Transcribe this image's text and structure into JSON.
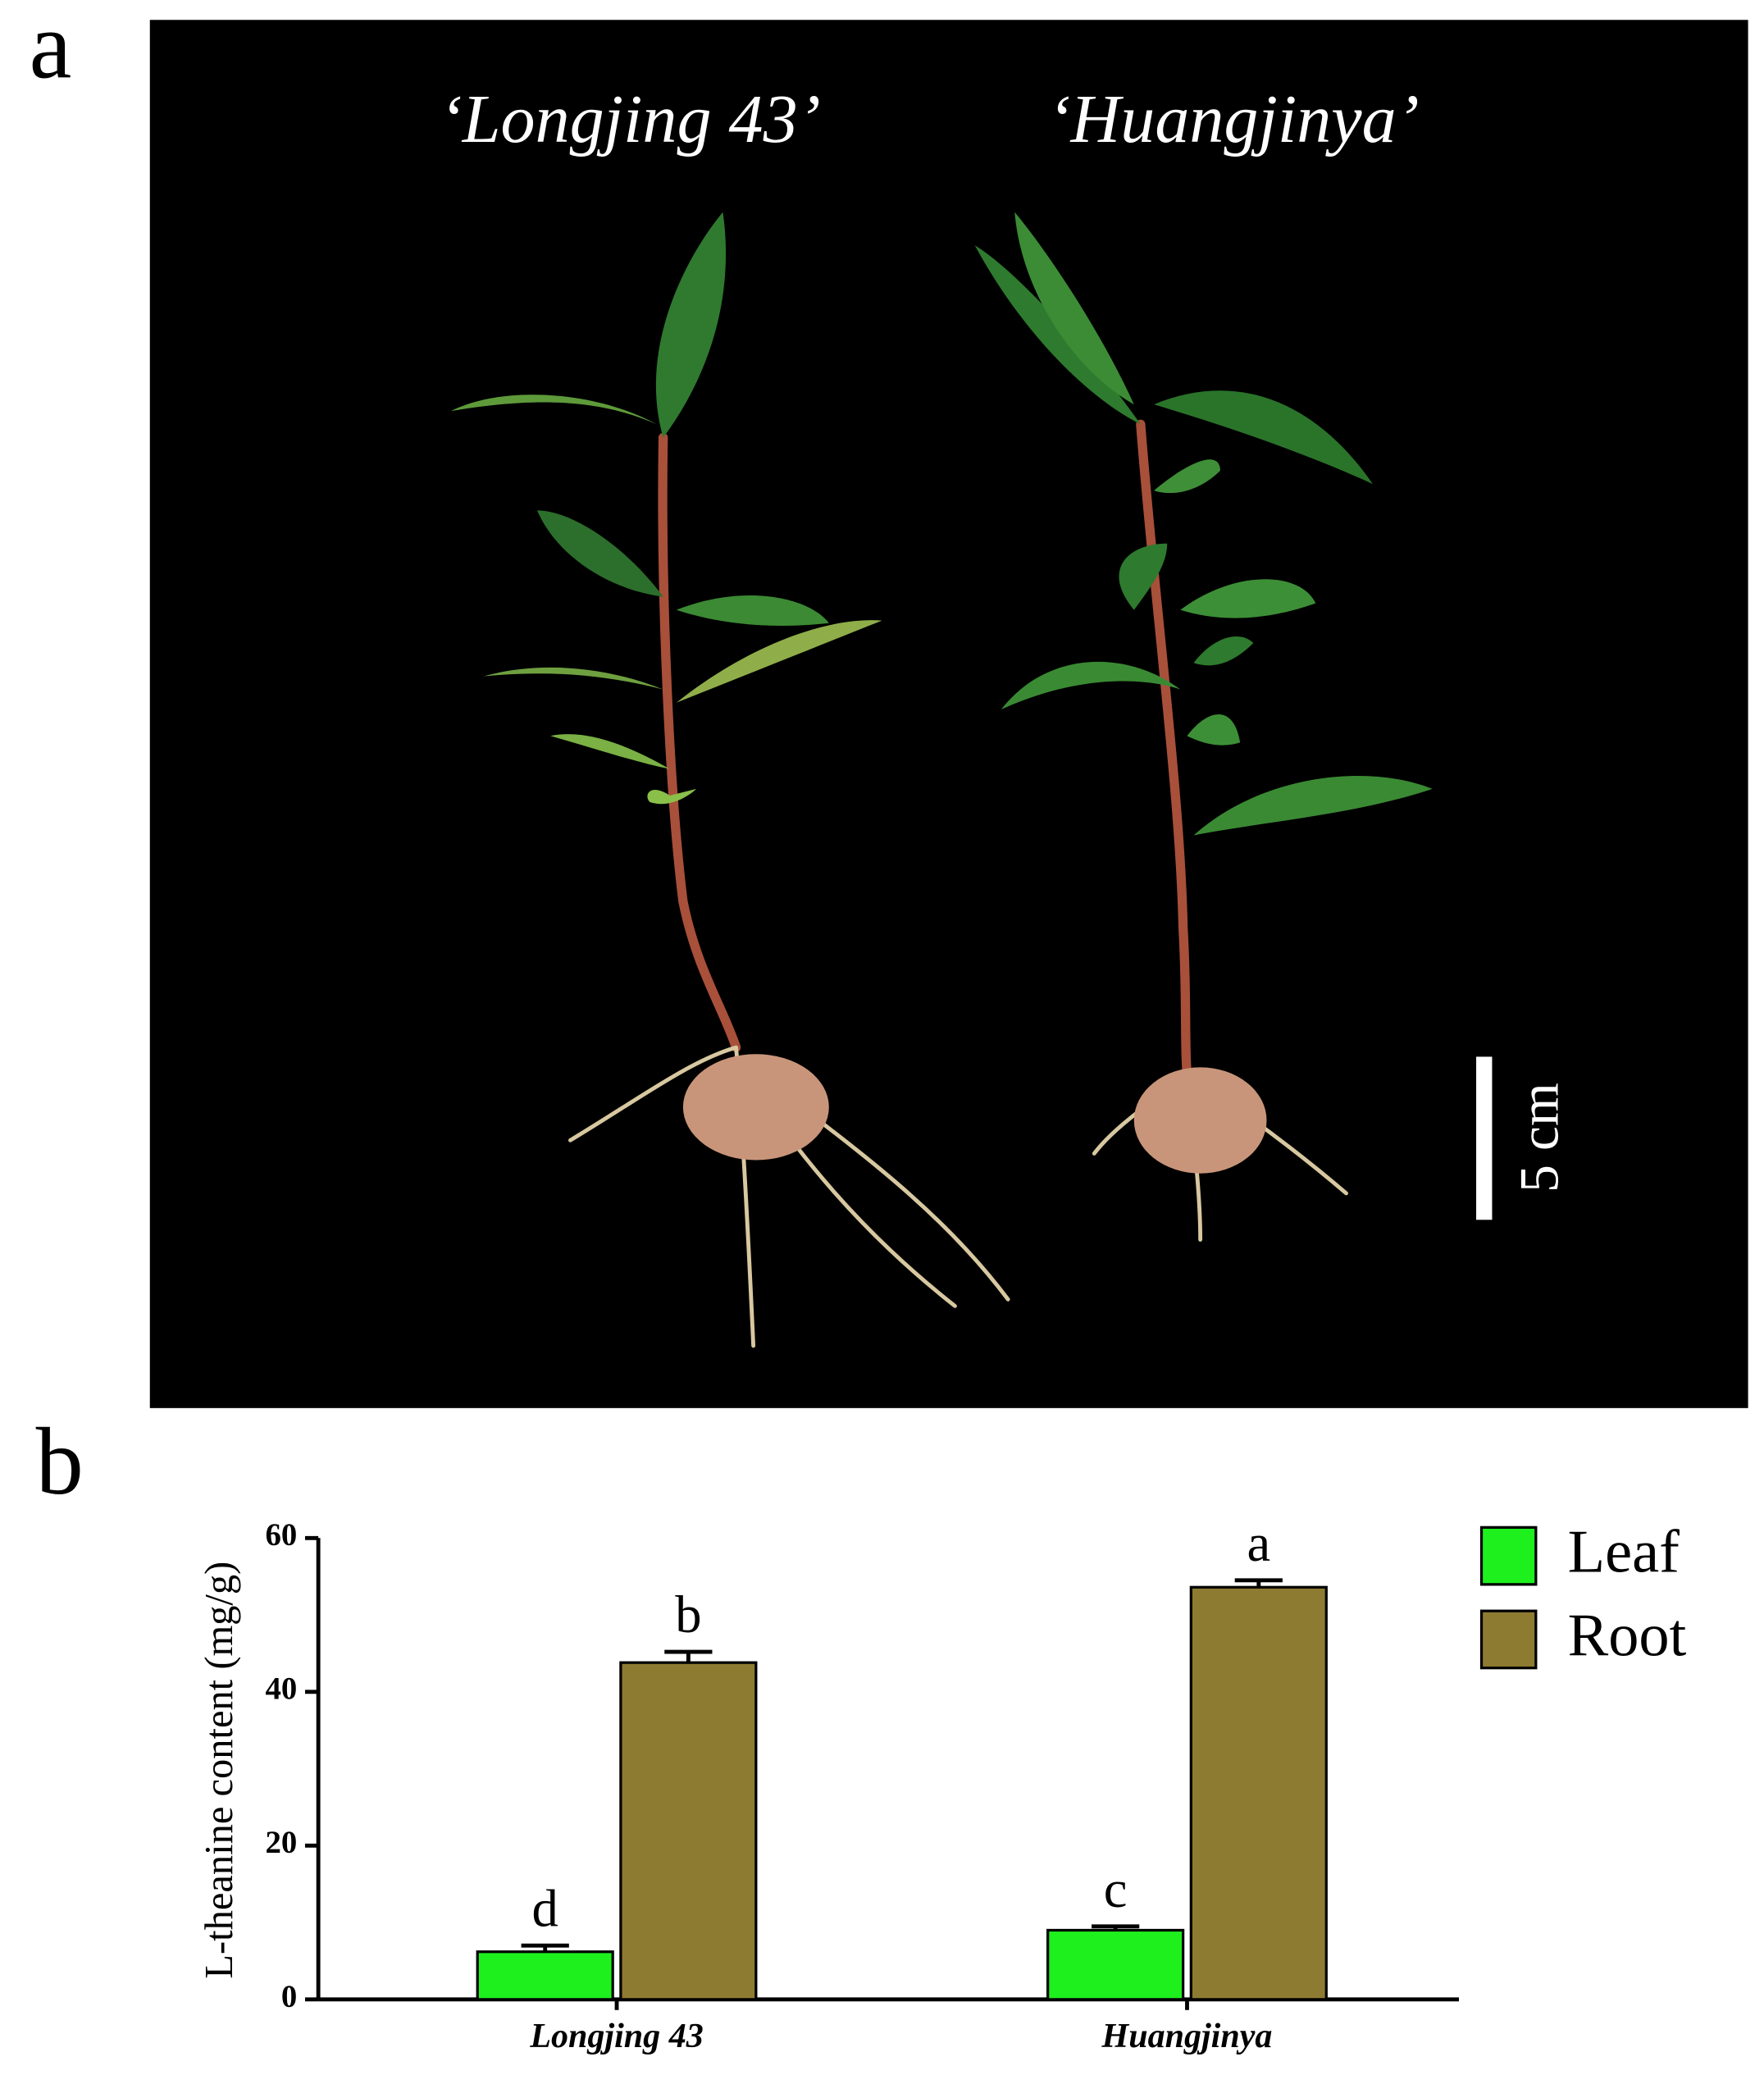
{
  "panel_labels": [
    "a",
    "b"
  ],
  "photo": {
    "labels": [
      "‘Longjing 43’",
      "‘Huangjinya’"
    ],
    "scale_bar": "5 cm"
  },
  "chart_data": {
    "type": "bar",
    "ylabel": "L-theanine content (mg/g)",
    "categories": [
      "Longjing 43",
      "Huangjinya"
    ],
    "series": [
      {
        "name": "Leaf",
        "color": "#1ef01e",
        "values": [
          6.2,
          9.0
        ],
        "errors": [
          0.8,
          0.5
        ],
        "labels": [
          "d",
          "c"
        ]
      },
      {
        "name": "Root",
        "color": "#8e7b32",
        "values": [
          43.8,
          53.6
        ],
        "errors": [
          1.4,
          0.9
        ],
        "labels": [
          "b",
          "a"
        ]
      }
    ],
    "ylim": [
      0,
      60
    ],
    "yticks": [
      0,
      20,
      40,
      60
    ],
    "legend": "upper right"
  }
}
